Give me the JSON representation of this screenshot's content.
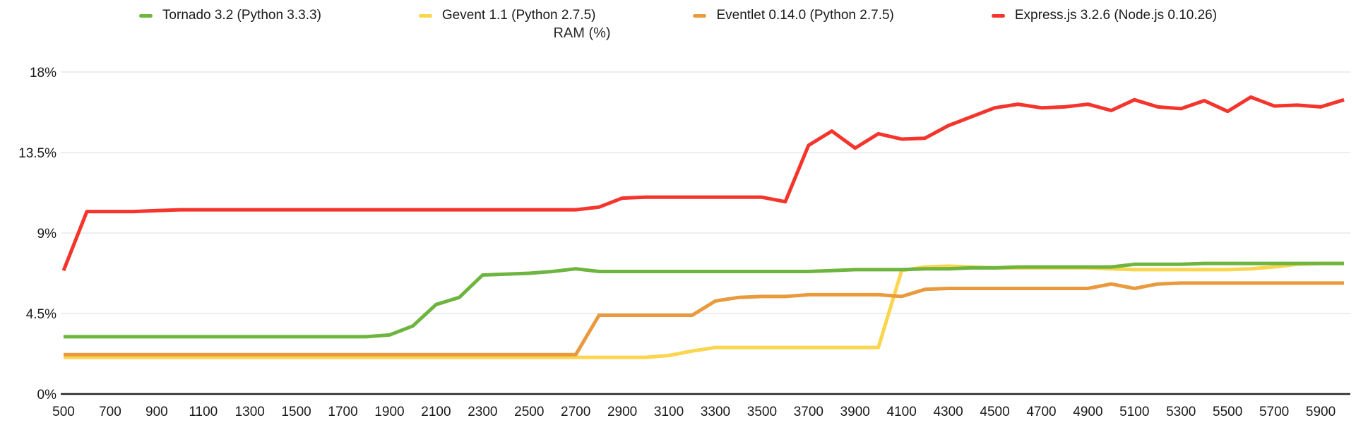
{
  "header": {
    "title": "RAM (%)"
  },
  "legend": [
    {
      "label": "Tornado 3.2 (Python 3.3.3)",
      "color": "#6db53f"
    },
    {
      "label": "Gevent 1.1 (Python 2.7.5)",
      "color": "#fbd54e"
    },
    {
      "label": "Eventlet 0.14.0 (Python 2.7.5)",
      "color": "#e99a3d"
    },
    {
      "label": "Express.js 3.2.6 (Node.js 0.10.26)",
      "color": "#f5342c"
    }
  ],
  "chart_data": {
    "type": "line",
    "title": "RAM (%)",
    "xlabel": "",
    "ylabel": "RAM (%)",
    "xlim": [
      500,
      6000
    ],
    "ylim": [
      0,
      18
    ],
    "grid": "horizontal",
    "legend_position": "top",
    "colors": {
      "gridline": "#e7e7e7",
      "axis": "#262626",
      "tick_text": "#1a1a1a"
    },
    "x": [
      500,
      600,
      700,
      800,
      900,
      1000,
      1100,
      1200,
      1300,
      1400,
      1500,
      1600,
      1700,
      1800,
      1900,
      2000,
      2100,
      2200,
      2300,
      2400,
      2500,
      2600,
      2700,
      2800,
      2900,
      3000,
      3100,
      3200,
      3300,
      3400,
      3500,
      3600,
      3700,
      3800,
      3900,
      4000,
      4100,
      4200,
      4300,
      4400,
      4500,
      4600,
      4700,
      4800,
      4900,
      5000,
      5100,
      5200,
      5300,
      5400,
      5500,
      5600,
      5700,
      5800,
      5900,
      6000
    ],
    "x_ticks": [
      500,
      700,
      900,
      1100,
      1300,
      1500,
      1700,
      1900,
      2100,
      2300,
      2500,
      2700,
      2900,
      3100,
      3300,
      3500,
      3700,
      3900,
      4100,
      4300,
      4500,
      4700,
      4900,
      5100,
      5300,
      5500,
      5700,
      5900
    ],
    "y_ticks": [
      0,
      4.5,
      9,
      13.5,
      18
    ],
    "y_tick_labels": [
      "0%",
      "4.5%",
      "9%",
      "13.5%",
      "18%"
    ],
    "series": [
      {
        "name": "Tornado 3.2 (Python 3.3.3)",
        "color": "#6db53f",
        "values": [
          3.2,
          3.2,
          3.2,
          3.2,
          3.2,
          3.2,
          3.2,
          3.2,
          3.2,
          3.2,
          3.2,
          3.2,
          3.2,
          3.2,
          3.3,
          3.8,
          5.0,
          5.4,
          6.65,
          6.7,
          6.75,
          6.85,
          7.0,
          6.85,
          6.85,
          6.85,
          6.85,
          6.85,
          6.85,
          6.85,
          6.85,
          6.85,
          6.85,
          6.9,
          6.95,
          6.95,
          6.95,
          7.0,
          7.0,
          7.05,
          7.05,
          7.1,
          7.1,
          7.1,
          7.1,
          7.1,
          7.25,
          7.25,
          7.25,
          7.3,
          7.3,
          7.3,
          7.3,
          7.3,
          7.3,
          7.3
        ]
      },
      {
        "name": "Gevent 1.1 (Python 2.7.5)",
        "color": "#fbd54e",
        "values": [
          2.05,
          2.05,
          2.05,
          2.05,
          2.05,
          2.05,
          2.05,
          2.05,
          2.05,
          2.05,
          2.05,
          2.05,
          2.05,
          2.05,
          2.05,
          2.05,
          2.05,
          2.05,
          2.05,
          2.05,
          2.05,
          2.05,
          2.05,
          2.05,
          2.05,
          2.05,
          2.15,
          2.4,
          2.6,
          2.6,
          2.6,
          2.6,
          2.6,
          2.6,
          2.6,
          2.6,
          6.9,
          7.1,
          7.15,
          7.1,
          7.05,
          7.05,
          7.05,
          7.05,
          7.05,
          7.0,
          6.95,
          6.95,
          6.95,
          6.95,
          6.95,
          7.0,
          7.1,
          7.25,
          7.3,
          7.3
        ]
      },
      {
        "name": "Eventlet 0.14.0 (Python 2.7.5)",
        "color": "#e99a3d",
        "values": [
          2.2,
          2.2,
          2.2,
          2.2,
          2.2,
          2.2,
          2.2,
          2.2,
          2.2,
          2.2,
          2.2,
          2.2,
          2.2,
          2.2,
          2.2,
          2.2,
          2.2,
          2.2,
          2.2,
          2.2,
          2.2,
          2.2,
          2.2,
          4.4,
          4.4,
          4.4,
          4.4,
          4.4,
          5.2,
          5.4,
          5.45,
          5.45,
          5.55,
          5.55,
          5.55,
          5.55,
          5.45,
          5.85,
          5.9,
          5.9,
          5.9,
          5.9,
          5.9,
          5.9,
          5.9,
          6.15,
          5.9,
          6.15,
          6.2,
          6.2,
          6.2,
          6.2,
          6.2,
          6.2,
          6.2,
          6.2
        ]
      },
      {
        "name": "Express.js 3.2.6 (Node.js 0.10.26)",
        "color": "#f5342c",
        "values": [
          6.9,
          10.2,
          10.2,
          10.2,
          10.25,
          10.3,
          10.3,
          10.3,
          10.3,
          10.3,
          10.3,
          10.3,
          10.3,
          10.3,
          10.3,
          10.3,
          10.3,
          10.3,
          10.3,
          10.3,
          10.3,
          10.3,
          10.3,
          10.45,
          10.95,
          11.0,
          11.0,
          11.0,
          11.0,
          11.0,
          11.0,
          10.75,
          13.9,
          14.7,
          13.75,
          14.55,
          14.25,
          14.3,
          15.0,
          15.5,
          16.0,
          16.2,
          16.0,
          16.05,
          16.2,
          15.85,
          16.45,
          16.05,
          15.95,
          16.4,
          15.8,
          16.6,
          16.1,
          16.15,
          16.05,
          16.45
        ]
      }
    ]
  }
}
